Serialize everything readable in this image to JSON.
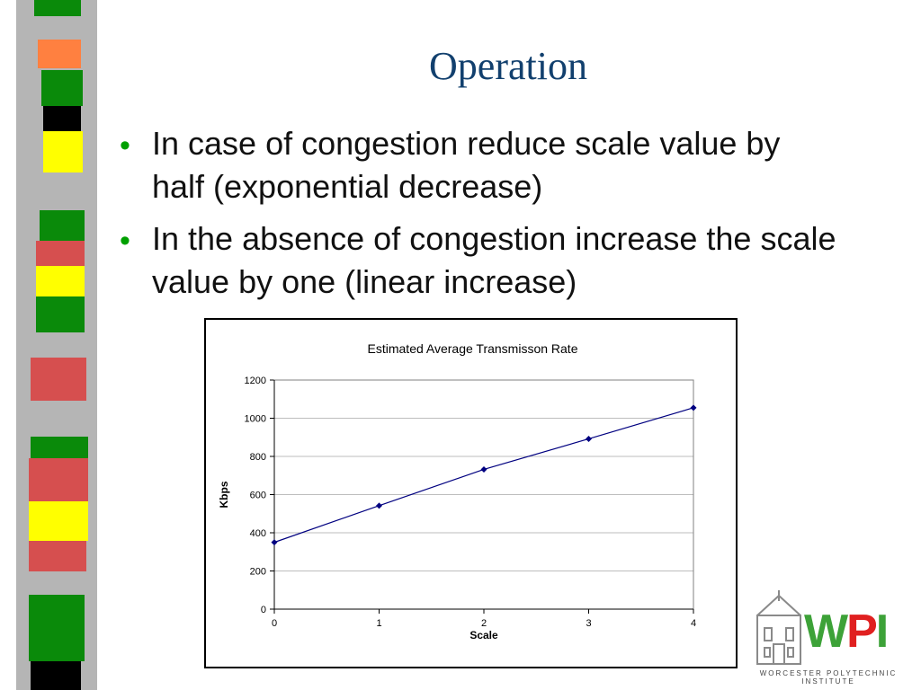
{
  "slide": {
    "title": "Operation",
    "bullets": [
      "In case of congestion reduce scale value by half (exponential decrease)",
      "In the absence of congestion increase the scale value by one (linear increase)"
    ],
    "bullet_symbol": "•"
  },
  "chart_data": {
    "type": "line",
    "title": "Estimated Average Transmisson Rate",
    "xlabel": "Scale",
    "ylabel": "Kbps",
    "x": [
      0,
      1,
      2,
      3,
      4
    ],
    "series": [
      {
        "values": [
          350,
          542,
          732,
          892,
          1055
        ]
      }
    ],
    "xlim": [
      0,
      4
    ],
    "ylim": [
      0,
      1200
    ],
    "yticks": [
      0,
      200,
      400,
      600,
      800,
      1000,
      1200
    ],
    "xticks": [
      0,
      1,
      2,
      3,
      4
    ],
    "grid": "horizontal",
    "line_color": "#000080",
    "marker": "diamond"
  },
  "logo": {
    "text_w": "W",
    "text_p": "P",
    "text_i": "I",
    "caption": "WORCESTER POLYTECHNIC INSTITUTE",
    "colors": {
      "green": "#3da238",
      "red": "#e02020"
    }
  },
  "stripe_colors": {
    "green": "#0a8a0a",
    "orange": "#ff8040",
    "black": "#000000",
    "yellow": "#ffff00",
    "red": "#d64f4f",
    "gray": "#8c8c8c"
  }
}
